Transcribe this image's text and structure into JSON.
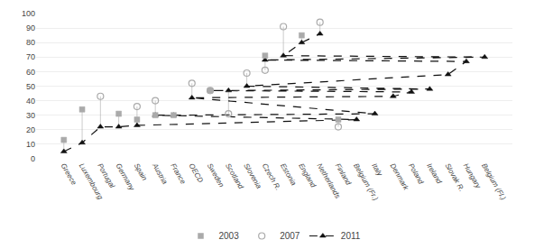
{
  "chart_data": {
    "type": "line",
    "categories": [
      "Greece",
      "Luxembourg",
      "Portugal",
      "Germany",
      "Spain",
      "Belgium (Fr.)",
      "Austria",
      "France",
      "Italy",
      "OECD",
      "Denmark",
      "Poland",
      "Sweden",
      "Scotland",
      "Ireland",
      "Slovenia",
      "Slovak R.",
      "Hungary",
      "Czech R.",
      "Belgium (Fl.)",
      "Estonia",
      "England",
      "Netherlands",
      "Finland"
    ],
    "series": [
      {
        "name": "2003",
        "color": "#aaaaaa",
        "marker": "square",
        "line_style": "none",
        "values": [
          13,
          34,
          null,
          31,
          27,
          null,
          30,
          30,
          null,
          null,
          null,
          null,
          47,
          null,
          null,
          null,
          null,
          null,
          71,
          null,
          null,
          85,
          null,
          27
        ]
      },
      {
        "name": "2007",
        "color": "#aaaaaa",
        "marker": "circle-open",
        "line_style": "none",
        "values": [
          null,
          null,
          43,
          null,
          36,
          null,
          40,
          null,
          null,
          52,
          null,
          null,
          47,
          31,
          null,
          59,
          null,
          null,
          61,
          null,
          91,
          null,
          94,
          22
        ]
      },
      {
        "name": "2011",
        "color": "#111111",
        "marker": "triangle-up",
        "line_style": "dashed",
        "values": [
          5,
          11,
          22,
          22,
          23,
          27,
          30,
          30,
          31,
          42,
          43,
          46,
          47,
          47,
          48,
          50,
          58,
          67,
          68,
          70,
          71,
          80,
          86,
          null
        ]
      }
    ],
    "ylim": [
      0,
      100
    ],
    "yticks": [
      0,
      10,
      20,
      30,
      40,
      50,
      60,
      70,
      80,
      90,
      100
    ],
    "grid": true,
    "legend": "bottom"
  }
}
